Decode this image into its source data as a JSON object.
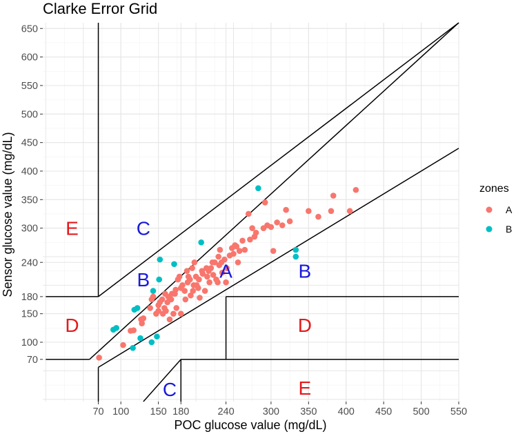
{
  "chart_data": {
    "type": "scatter",
    "title": "Clarke Error Grid",
    "xlabel": "POC glucose value (mg/dL)",
    "ylabel": "Sensor glucose value (mg/dL)",
    "xlim": [
      -4,
      550
    ],
    "ylim": [
      -4,
      660
    ],
    "x_ticks": [
      70,
      100,
      150,
      180,
      240,
      300,
      350,
      400,
      450,
      500,
      550
    ],
    "y_ticks": [
      70,
      100,
      150,
      180,
      240,
      300,
      350,
      400,
      450,
      500,
      550,
      600,
      650
    ],
    "legend": {
      "title": "zones",
      "position": "right"
    },
    "colors": {
      "A": "#f8766d",
      "B": "#00bfc4",
      "zone_label_A_C": "#1a1adb",
      "zone_label_D_E": "#e31a1c"
    },
    "zone_labels": [
      {
        "text": "E",
        "x": 35,
        "y": 300,
        "color_key": "red"
      },
      {
        "text": "C",
        "x": 130,
        "y": 300,
        "color_key": "blue"
      },
      {
        "text": "B",
        "x": 130,
        "y": 210,
        "color_key": "blue"
      },
      {
        "text": "D",
        "x": 35,
        "y": 130,
        "color_key": "red"
      },
      {
        "text": "A",
        "x": 240,
        "y": 225,
        "color_key": "blue"
      },
      {
        "text": "B",
        "x": 345,
        "y": 225,
        "color_key": "blue"
      },
      {
        "text": "D",
        "x": 345,
        "y": 130,
        "color_key": "red"
      },
      {
        "text": "E",
        "x": 345,
        "y": 20,
        "color_key": "red"
      },
      {
        "text": "C",
        "x": 165,
        "y": 18,
        "color_key": "blue"
      }
    ],
    "series": [
      {
        "name": "A",
        "points": [
          [
            71,
            73
          ],
          [
            103,
            95
          ],
          [
            113,
            120
          ],
          [
            117,
            121
          ],
          [
            128,
            133
          ],
          [
            127,
            140
          ],
          [
            130,
            142
          ],
          [
            139,
            160
          ],
          [
            141,
            175
          ],
          [
            143,
            180
          ],
          [
            147,
            150
          ],
          [
            150,
            165
          ],
          [
            152,
            170
          ],
          [
            150,
            155
          ],
          [
            155,
            175
          ],
          [
            156,
            150
          ],
          [
            158,
            160
          ],
          [
            159,
            185
          ],
          [
            160,
            155
          ],
          [
            162,
            170
          ],
          [
            163,
            180
          ],
          [
            165,
            140
          ],
          [
            167,
            175
          ],
          [
            168,
            185
          ],
          [
            170,
            150
          ],
          [
            172,
            185
          ],
          [
            173,
            192
          ],
          [
            174,
            160
          ],
          [
            176,
            210
          ],
          [
            178,
            215
          ],
          [
            180,
            195
          ],
          [
            180,
            150
          ],
          [
            182,
            200
          ],
          [
            185,
            190
          ],
          [
            186,
            175
          ],
          [
            188,
            225
          ],
          [
            189,
            205
          ],
          [
            190,
            215
          ],
          [
            192,
            210
          ],
          [
            193,
            182
          ],
          [
            195,
            230
          ],
          [
            196,
            190
          ],
          [
            197,
            200
          ],
          [
            198,
            240
          ],
          [
            200,
            215
          ],
          [
            201,
            200
          ],
          [
            203,
            195
          ],
          [
            204,
            210
          ],
          [
            205,
            178
          ],
          [
            208,
            225
          ],
          [
            209,
            220
          ],
          [
            212,
            190
          ],
          [
            214,
            230
          ],
          [
            215,
            215
          ],
          [
            217,
            225
          ],
          [
            218,
            205
          ],
          [
            220,
            230
          ],
          [
            222,
            240
          ],
          [
            223,
            218
          ],
          [
            225,
            240
          ],
          [
            227,
            210
          ],
          [
            229,
            205
          ],
          [
            230,
            250
          ],
          [
            231,
            235
          ],
          [
            232,
            262
          ],
          [
            234,
            240
          ],
          [
            235,
            222
          ],
          [
            238,
            245
          ],
          [
            240,
            205
          ],
          [
            241,
            230
          ],
          [
            245,
            252
          ],
          [
            248,
            265
          ],
          [
            250,
            255
          ],
          [
            252,
            270
          ],
          [
            254,
            268
          ],
          [
            256,
            240
          ],
          [
            258,
            260
          ],
          [
            262,
            278
          ],
          [
            265,
            262
          ],
          [
            270,
            325
          ],
          [
            272,
            280
          ],
          [
            275,
            300
          ],
          [
            278,
            285
          ],
          [
            280,
            292
          ],
          [
            290,
            300
          ],
          [
            292,
            345
          ],
          [
            295,
            305
          ],
          [
            300,
            302
          ],
          [
            303,
            260
          ],
          [
            308,
            310
          ],
          [
            315,
            305
          ],
          [
            320,
            332
          ],
          [
            325,
            312
          ],
          [
            350,
            330
          ],
          [
            363,
            320
          ],
          [
            380,
            330
          ],
          [
            383,
            357
          ],
          [
            405,
            330
          ],
          [
            413,
            367
          ]
        ]
      },
      {
        "name": "B",
        "points": [
          [
            90,
            122
          ],
          [
            94,
            125
          ],
          [
            116,
            90
          ],
          [
            118,
            157
          ],
          [
            122,
            160
          ],
          [
            126,
            107
          ],
          [
            141,
            100
          ],
          [
            143,
            190
          ],
          [
            148,
            110
          ],
          [
            151,
            210
          ],
          [
            152,
            245
          ],
          [
            171,
            237
          ],
          [
            207,
            275
          ],
          [
            283,
            370
          ],
          [
            333,
            262
          ],
          [
            333,
            250
          ]
        ]
      }
    ]
  }
}
